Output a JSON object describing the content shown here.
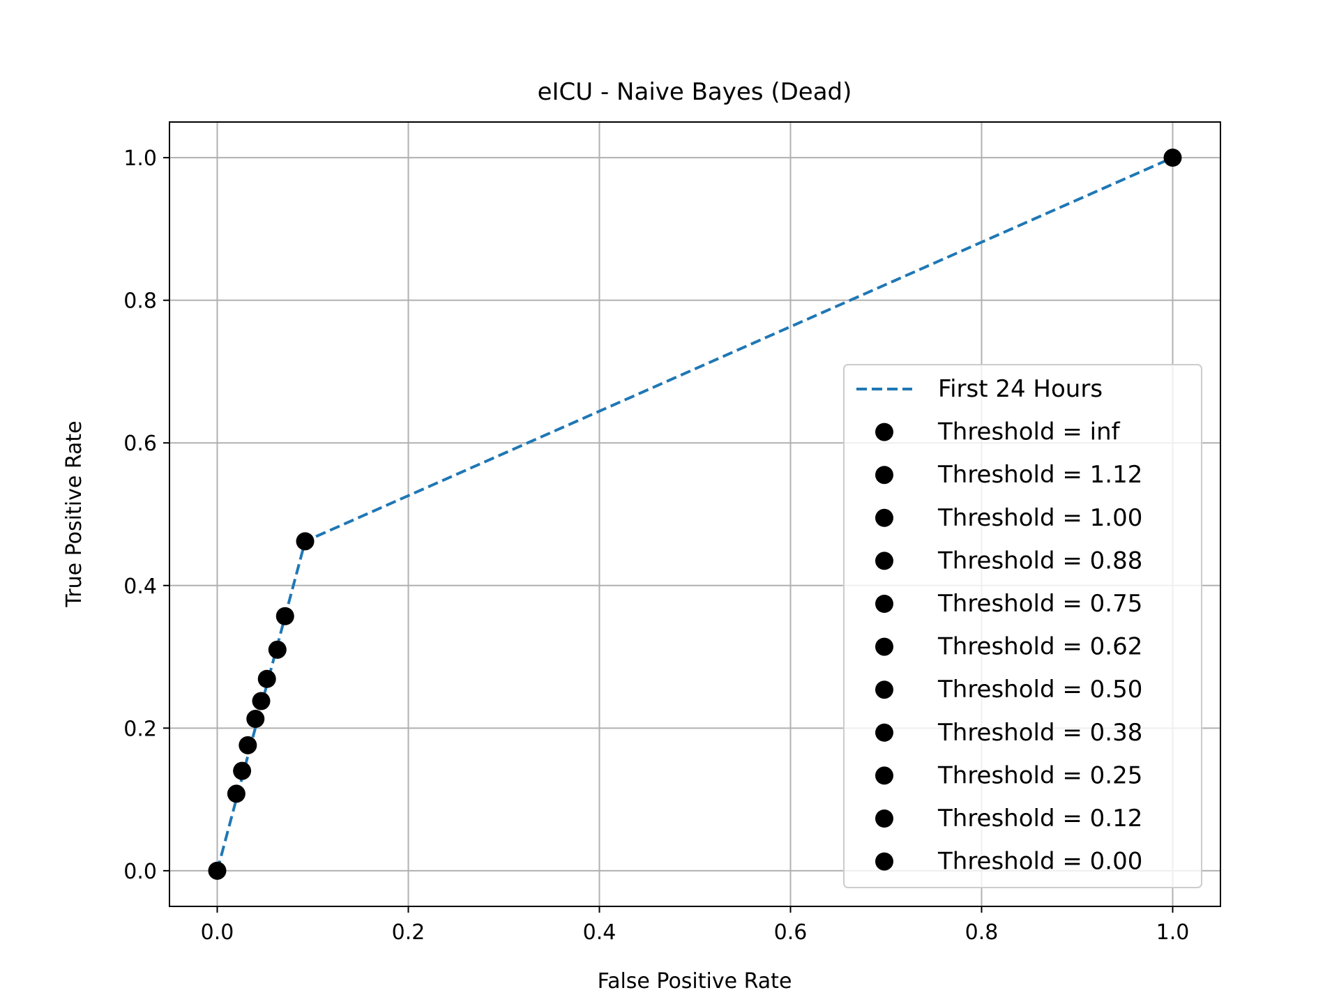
{
  "chart_data": {
    "type": "line",
    "title": "eICU - Naive Bayes (Dead)",
    "xlabel": "False Positive Rate",
    "ylabel": "True Positive Rate",
    "xlim": [
      -0.05,
      1.05
    ],
    "ylim": [
      -0.05,
      1.05
    ],
    "xticks": [
      0.0,
      0.2,
      0.4,
      0.6,
      0.8,
      1.0
    ],
    "yticks": [
      0.0,
      0.2,
      0.4,
      0.6,
      0.8,
      1.0
    ],
    "xtick_labels": [
      "0.0",
      "0.2",
      "0.4",
      "0.6",
      "0.8",
      "1.0"
    ],
    "ytick_labels": [
      "0.0",
      "0.2",
      "0.4",
      "0.6",
      "0.8",
      "1.0"
    ],
    "grid": true,
    "legend_position": "lower right",
    "series": [
      {
        "name": "First 24 Hours",
        "style": "dashed",
        "color": "#1f77b4",
        "x": [
          0.0,
          0.092,
          1.0
        ],
        "y": [
          0.0,
          0.462,
          1.0
        ]
      }
    ],
    "threshold_points": [
      {
        "label": "Threshold = inf",
        "x": 0.0,
        "y": 0.0
      },
      {
        "label": "Threshold = 1.12",
        "x": 0.02,
        "y": 0.108
      },
      {
        "label": "Threshold = 1.00",
        "x": 0.026,
        "y": 0.14
      },
      {
        "label": "Threshold = 0.88",
        "x": 0.032,
        "y": 0.176
      },
      {
        "label": "Threshold = 0.75",
        "x": 0.04,
        "y": 0.213
      },
      {
        "label": "Threshold = 0.62",
        "x": 0.046,
        "y": 0.238
      },
      {
        "label": "Threshold = 0.50",
        "x": 0.052,
        "y": 0.269
      },
      {
        "label": "Threshold = 0.38",
        "x": 0.063,
        "y": 0.31
      },
      {
        "label": "Threshold = 0.25",
        "x": 0.071,
        "y": 0.357
      },
      {
        "label": "Threshold = 0.12",
        "x": 0.092,
        "y": 0.462
      },
      {
        "label": "Threshold = 0.00",
        "x": 1.0,
        "y": 1.0
      }
    ],
    "point_color": "#000000",
    "grid_color": "#b0b0b0"
  }
}
